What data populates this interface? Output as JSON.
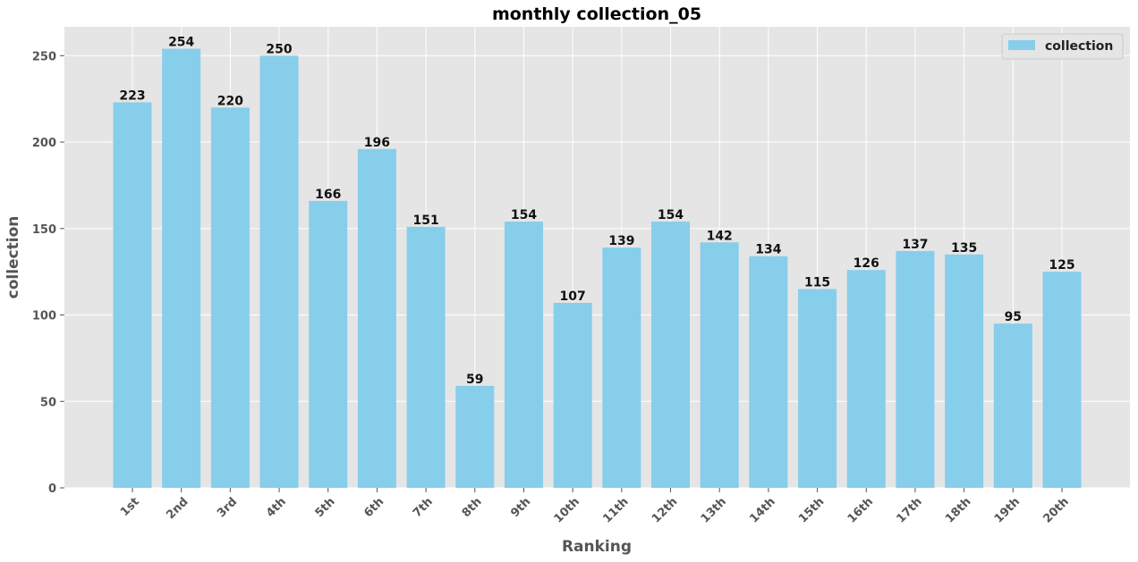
{
  "colors": {
    "background": "#ffffff",
    "plot_background": "#e5e5e5",
    "grid": "#ffffff",
    "bar": "#87ceeb",
    "tick_text": "#555555"
  },
  "chart_data": {
    "type": "bar",
    "title": "monthly collection_05",
    "xlabel": "Ranking",
    "ylabel": "collection",
    "categories": [
      "1st",
      "2nd",
      "3rd",
      "4th",
      "5th",
      "6th",
      "7th",
      "8th",
      "9th",
      "10th",
      "11th",
      "12th",
      "13th",
      "14th",
      "15th",
      "16th",
      "17th",
      "18th",
      "19th",
      "20th"
    ],
    "series": [
      {
        "name": "collection",
        "values": [
          223,
          254,
          220,
          250,
          166,
          196,
          151,
          59,
          154,
          107,
          139,
          154,
          142,
          134,
          115,
          126,
          137,
          135,
          95,
          125
        ]
      }
    ],
    "ylim": [
      0,
      266.7
    ],
    "yticks": [
      0,
      50,
      100,
      150,
      200,
      250
    ],
    "grid": true,
    "legend_position": "top-right",
    "data_labels": true
  }
}
